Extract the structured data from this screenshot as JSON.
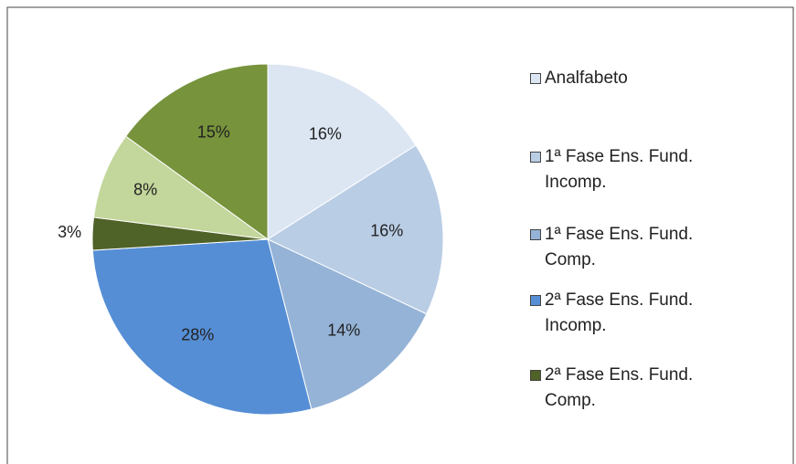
{
  "chart_data": {
    "type": "pie",
    "categories": [
      "Analfabeto",
      "1ª Fase Ens. Fund. Incomp.",
      "1ª Fase Ens. Fund. Comp.",
      "2ª Fase Ens. Fund. Incomp.",
      "2ª Fase Ens. Fund. Comp.",
      null,
      null
    ],
    "values": [
      16,
      16,
      14,
      28,
      3,
      8,
      15
    ],
    "value_labels": [
      "16%",
      "16%",
      "14%",
      "28%",
      "3%",
      "8%",
      "15%"
    ],
    "colors": [
      "#dce6f2",
      "#b9cde5",
      "#95b3d7",
      "#558ed5",
      "#4f6228",
      "#c3d69b",
      "#77933c"
    ],
    "legend": "right"
  }
}
